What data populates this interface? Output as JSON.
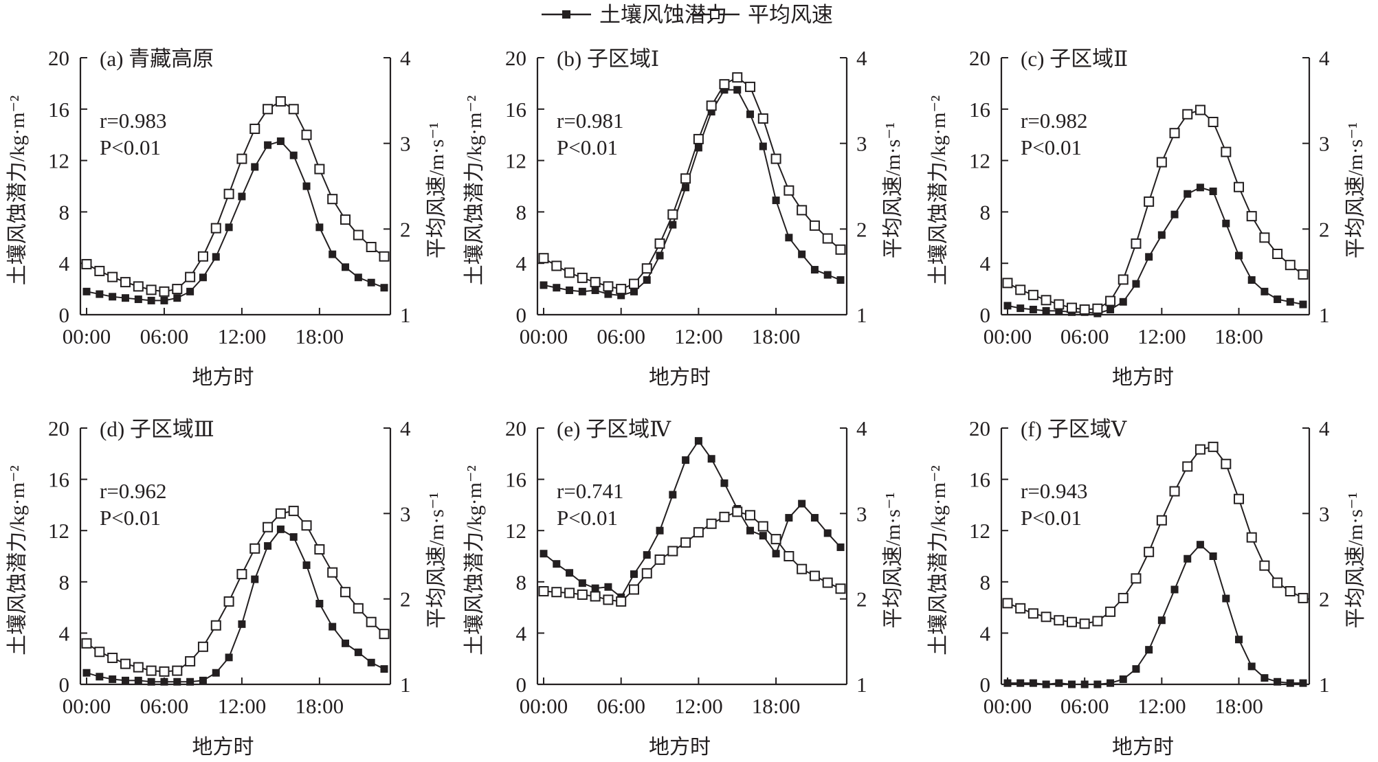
{
  "legend": {
    "items": [
      {
        "label": "土壤风蚀潜力",
        "marker": "filled-square"
      },
      {
        "label": "平均风速",
        "marker": "hollow-square"
      }
    ]
  },
  "colors": {
    "line": "#231f20",
    "filled_marker": "#231f20",
    "hollow_marker_fill": "#ffffff",
    "background": "#ffffff"
  },
  "chart_data": [
    {
      "type": "line",
      "panel": "a",
      "title": "(a) 青藏高原",
      "xlabel": "地方时",
      "ylabel_left": "土壤风蚀潜力/kg·m⁻²",
      "ylabel_right": "平均风速/m·s⁻¹",
      "x": [
        0,
        1,
        2,
        3,
        4,
        5,
        6,
        7,
        8,
        9,
        10,
        11,
        12,
        13,
        14,
        15,
        16,
        17,
        18,
        19,
        20,
        21,
        22,
        23
      ],
      "x_ticks": [
        "00:00",
        "06:00",
        "12:00",
        "18:00"
      ],
      "ylim_left": [
        0,
        20
      ],
      "y_ticks_left": [
        "0",
        "4",
        "8",
        "12",
        "16",
        "20"
      ],
      "ylim_right": [
        1,
        4
      ],
      "y_ticks_right": [
        "1",
        "2",
        "3",
        "4"
      ],
      "annotation": {
        "r": "r=0.983",
        "p": "P<0.01"
      },
      "series": [
        {
          "name": "土壤风蚀潜力",
          "axis": "left",
          "marker": "filled-square",
          "values": [
            1.8,
            1.6,
            1.4,
            1.3,
            1.2,
            1.1,
            1.1,
            1.3,
            1.8,
            2.9,
            4.5,
            6.8,
            9.2,
            11.5,
            13.2,
            13.5,
            12.4,
            10.0,
            6.8,
            4.7,
            3.7,
            2.9,
            2.5,
            2.1
          ]
        },
        {
          "name": "平均风速",
          "axis": "right",
          "marker": "hollow-square",
          "values": [
            1.59,
            1.51,
            1.44,
            1.38,
            1.33,
            1.29,
            1.27,
            1.3,
            1.44,
            1.68,
            2.01,
            2.41,
            2.82,
            3.17,
            3.4,
            3.49,
            3.4,
            3.1,
            2.7,
            2.35,
            2.11,
            1.93,
            1.79,
            1.68
          ]
        }
      ]
    },
    {
      "type": "line",
      "panel": "b",
      "title": "(b) 子区域Ⅰ",
      "xlabel": "地方时",
      "ylabel_left": "土壤风蚀潜力/kg·m⁻²",
      "ylabel_right": "平均风速/m·s⁻¹",
      "x": [
        0,
        1,
        2,
        3,
        4,
        5,
        6,
        7,
        8,
        9,
        10,
        11,
        12,
        13,
        14,
        15,
        16,
        17,
        18,
        19,
        20,
        21,
        22,
        23
      ],
      "x_ticks": [
        "00:00",
        "06:00",
        "12:00",
        "18:00"
      ],
      "ylim_left": [
        0,
        20
      ],
      "y_ticks_left": [
        "0",
        "4",
        "8",
        "12",
        "16",
        "20"
      ],
      "ylim_right": [
        1,
        4
      ],
      "y_ticks_right": [
        "1",
        "2",
        "3",
        "4"
      ],
      "annotation": {
        "r": "r=0.981",
        "p": "P<0.01"
      },
      "series": [
        {
          "name": "土壤风蚀潜力",
          "axis": "left",
          "marker": "filled-square",
          "values": [
            2.3,
            2.1,
            1.9,
            1.8,
            1.9,
            1.6,
            1.5,
            1.8,
            2.7,
            4.6,
            7.0,
            9.9,
            13.0,
            15.8,
            17.5,
            17.5,
            15.6,
            13.1,
            8.9,
            6.0,
            4.7,
            3.5,
            3.1,
            2.7
          ]
        },
        {
          "name": "平均风速",
          "axis": "right",
          "marker": "hollow-square",
          "values": [
            1.66,
            1.57,
            1.49,
            1.43,
            1.38,
            1.33,
            1.3,
            1.36,
            1.54,
            1.83,
            2.17,
            2.59,
            3.05,
            3.44,
            3.69,
            3.77,
            3.66,
            3.29,
            2.82,
            2.45,
            2.22,
            2.04,
            1.89,
            1.76
          ]
        }
      ]
    },
    {
      "type": "line",
      "panel": "c",
      "title": "(c) 子区域Ⅱ",
      "xlabel": "地方时",
      "ylabel_left": "土壤风蚀潜力/kg·m⁻²",
      "ylabel_right": "平均风速/m·s⁻¹",
      "x": [
        0,
        1,
        2,
        3,
        4,
        5,
        6,
        7,
        8,
        9,
        10,
        11,
        12,
        13,
        14,
        15,
        16,
        17,
        18,
        19,
        20,
        21,
        22,
        23
      ],
      "x_ticks": [
        "00:00",
        "06:00",
        "12:00",
        "18:00"
      ],
      "ylim_left": [
        0,
        20
      ],
      "y_ticks_left": [
        "0",
        "4",
        "8",
        "12",
        "16",
        "20"
      ],
      "ylim_right": [
        1,
        4
      ],
      "y_ticks_right": [
        "1",
        "2",
        "3",
        "4"
      ],
      "annotation": {
        "r": "r=0.982",
        "p": "P<0.01"
      },
      "series": [
        {
          "name": "土壤风蚀潜力",
          "axis": "left",
          "marker": "filled-square",
          "values": [
            0.7,
            0.5,
            0.4,
            0.3,
            0.3,
            0.2,
            0.2,
            0.1,
            0.4,
            1.0,
            2.4,
            4.5,
            6.2,
            7.8,
            9.4,
            9.9,
            9.6,
            7.1,
            4.6,
            2.7,
            1.8,
            1.2,
            1.0,
            0.8
          ]
        },
        {
          "name": "平均风速",
          "axis": "right",
          "marker": "hollow-square",
          "values": [
            1.37,
            1.29,
            1.23,
            1.17,
            1.12,
            1.08,
            1.06,
            1.07,
            1.16,
            1.41,
            1.83,
            2.32,
            2.78,
            3.12,
            3.34,
            3.39,
            3.25,
            2.9,
            2.49,
            2.15,
            1.9,
            1.71,
            1.58,
            1.47
          ]
        }
      ]
    },
    {
      "type": "line",
      "panel": "d",
      "title": "(d) 子区域Ⅲ",
      "xlabel": "地方时",
      "ylabel_left": "土壤风蚀潜力/kg·m⁻²",
      "ylabel_right": "平均风速/m·s⁻¹",
      "x": [
        0,
        1,
        2,
        3,
        4,
        5,
        6,
        7,
        8,
        9,
        10,
        11,
        12,
        13,
        14,
        15,
        16,
        17,
        18,
        19,
        20,
        21,
        22,
        23
      ],
      "x_ticks": [
        "00:00",
        "06:00",
        "12:00",
        "18:00"
      ],
      "ylim_left": [
        0,
        20
      ],
      "y_ticks_left": [
        "0",
        "4",
        "8",
        "12",
        "16",
        "20"
      ],
      "ylim_right": [
        1,
        4
      ],
      "y_ticks_right": [
        "1",
        "2",
        "3",
        "4"
      ],
      "annotation": {
        "r": "r=0.962",
        "p": "P<0.01"
      },
      "series": [
        {
          "name": "土壤风蚀潜力",
          "axis": "left",
          "marker": "filled-square",
          "values": [
            0.9,
            0.6,
            0.4,
            0.3,
            0.3,
            0.2,
            0.2,
            0.2,
            0.2,
            0.3,
            0.9,
            2.1,
            4.7,
            8.2,
            10.8,
            12.1,
            11.5,
            9.3,
            6.3,
            4.5,
            3.2,
            2.5,
            1.7,
            1.2
          ]
        },
        {
          "name": "平均风速",
          "axis": "right",
          "marker": "hollow-square",
          "values": [
            1.48,
            1.38,
            1.31,
            1.24,
            1.2,
            1.16,
            1.15,
            1.16,
            1.27,
            1.44,
            1.69,
            1.97,
            2.29,
            2.59,
            2.84,
            3.0,
            3.03,
            2.86,
            2.58,
            2.31,
            2.08,
            1.89,
            1.73,
            1.59
          ]
        }
      ]
    },
    {
      "type": "line",
      "panel": "e",
      "title": "(e) 子区域Ⅳ",
      "xlabel": "地方时",
      "ylabel_left": "土壤风蚀潜力/kg·m⁻²",
      "ylabel_right": "平均风速/m·s⁻¹",
      "x": [
        0,
        1,
        2,
        3,
        4,
        5,
        6,
        7,
        8,
        9,
        10,
        11,
        12,
        13,
        14,
        15,
        16,
        17,
        18,
        19,
        20,
        21,
        22,
        23
      ],
      "x_ticks": [
        "00:00",
        "06:00",
        "12:00",
        "18:00"
      ],
      "ylim_left": [
        0,
        20
      ],
      "y_ticks_left": [
        "0",
        "4",
        "8",
        "12",
        "16",
        "20"
      ],
      "ylim_right": [
        1,
        4
      ],
      "y_ticks_right": [
        "1",
        "2",
        "3",
        "4"
      ],
      "annotation": {
        "r": "r=0.741",
        "p": "P<0.01"
      },
      "series": [
        {
          "name": "土壤风蚀潜力",
          "axis": "left",
          "marker": "filled-square",
          "values": [
            10.2,
            9.4,
            8.7,
            7.9,
            7.5,
            7.6,
            6.8,
            8.6,
            10.1,
            12.0,
            14.8,
            17.5,
            19.0,
            17.6,
            15.7,
            13.7,
            12.0,
            11.6,
            10.2,
            13.0,
            14.1,
            13.0,
            11.8,
            10.7
          ]
        },
        {
          "name": "平均风速",
          "axis": "right",
          "marker": "hollow-square",
          "values": [
            2.09,
            2.08,
            2.07,
            2.05,
            2.03,
            1.99,
            1.97,
            2.11,
            2.3,
            2.46,
            2.56,
            2.66,
            2.78,
            2.88,
            2.96,
            3.02,
            2.98,
            2.85,
            2.7,
            2.5,
            2.35,
            2.27,
            2.19,
            2.12
          ]
        }
      ]
    },
    {
      "type": "line",
      "panel": "f",
      "title": "(f) 子区域Ⅴ",
      "xlabel": "地方时",
      "ylabel_left": "土壤风蚀潜力/kg·m⁻²",
      "ylabel_right": "平均风速/m·s⁻¹",
      "x": [
        0,
        1,
        2,
        3,
        4,
        5,
        6,
        7,
        8,
        9,
        10,
        11,
        12,
        13,
        14,
        15,
        16,
        17,
        18,
        19,
        20,
        21,
        22,
        23
      ],
      "x_ticks": [
        "00:00",
        "06:00",
        "12:00",
        "18:00"
      ],
      "ylim_left": [
        0,
        20
      ],
      "y_ticks_left": [
        "0",
        "4",
        "8",
        "12",
        "16",
        "20"
      ],
      "ylim_right": [
        1,
        4
      ],
      "y_ticks_right": [
        "1",
        "2",
        "3",
        "4"
      ],
      "annotation": {
        "r": "r=0.943",
        "p": "P<0.01"
      },
      "series": [
        {
          "name": "土壤风蚀潜力",
          "axis": "left",
          "marker": "filled-square",
          "values": [
            0.1,
            0.1,
            0.1,
            0.0,
            0.1,
            0.0,
            0.0,
            0.0,
            0.1,
            0.4,
            1.2,
            2.7,
            5.0,
            7.4,
            9.8,
            10.9,
            10.0,
            6.7,
            3.5,
            1.4,
            0.5,
            0.2,
            0.1,
            0.1
          ]
        },
        {
          "name": "平均风速",
          "axis": "right",
          "marker": "hollow-square",
          "values": [
            1.95,
            1.89,
            1.83,
            1.79,
            1.75,
            1.73,
            1.71,
            1.74,
            1.85,
            2.01,
            2.24,
            2.55,
            2.92,
            3.26,
            3.55,
            3.75,
            3.78,
            3.58,
            3.17,
            2.72,
            2.39,
            2.19,
            2.09,
            2.01
          ]
        }
      ]
    }
  ]
}
